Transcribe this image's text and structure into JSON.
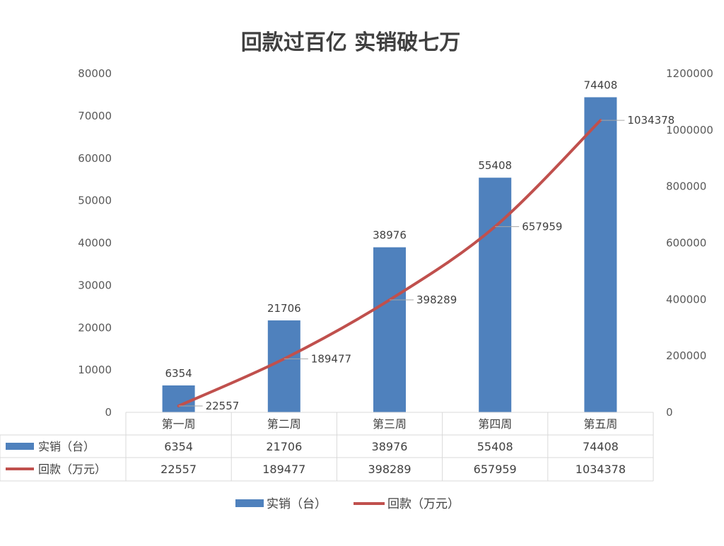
{
  "chart_data": {
    "type": "bar",
    "title": "回款过百亿 实销破七万",
    "categories": [
      "第一周",
      "第二周",
      "第三周",
      "第四周",
      "第五周"
    ],
    "series": [
      {
        "name": "实销（台）",
        "type": "bar",
        "axis": "left",
        "color": "#4f81bd",
        "values": [
          6354,
          21706,
          38976,
          55408,
          74408
        ]
      },
      {
        "name": "回款（万元）",
        "type": "line",
        "axis": "right",
        "color": "#c0504d",
        "values": [
          22557,
          189477,
          398289,
          657959,
          1034378
        ]
      }
    ],
    "y_left": {
      "min": 0,
      "max": 80000,
      "step": 10000,
      "ticks": [
        "0",
        "10000",
        "20000",
        "30000",
        "40000",
        "50000",
        "60000",
        "70000",
        "80000"
      ]
    },
    "y_right": {
      "min": 0,
      "max": 1200000,
      "step": 200000,
      "ticks": [
        "0",
        "200000",
        "400000",
        "600000",
        "800000",
        "1000000",
        "1200000"
      ]
    },
    "bar_labels": [
      "6354",
      "21706",
      "38976",
      "55408",
      "74408"
    ],
    "line_labels": [
      "22557",
      "189477",
      "398289",
      "657959",
      "1034378"
    ],
    "data_table": {
      "rows": [
        {
          "label": "实销（台）",
          "values": [
            "6354",
            "21706",
            "38976",
            "55408",
            "74408"
          ]
        },
        {
          "label": "回款（万元）",
          "values": [
            "22557",
            "189477",
            "398289",
            "657959",
            "1034378"
          ]
        }
      ]
    },
    "legend": {
      "position": "bottom",
      "items": [
        {
          "label": "实销（台）",
          "marker": "bar",
          "color": "#4f81bd"
        },
        {
          "label": "回款（万元）",
          "marker": "line",
          "color": "#c0504d"
        }
      ]
    },
    "grid": false
  }
}
